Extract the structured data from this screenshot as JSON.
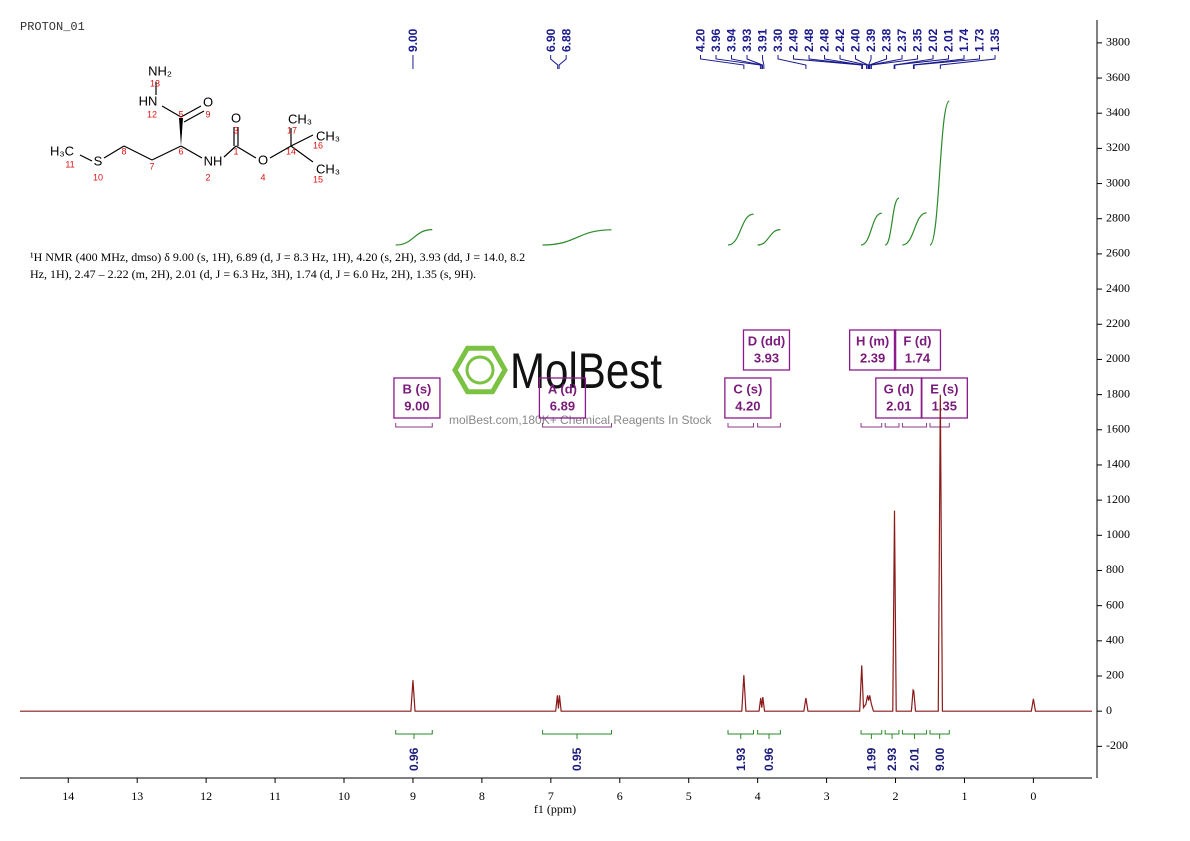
{
  "file_label": "PROTON_01",
  "structure": {
    "atoms": [
      "NH₂",
      "HN",
      "O",
      "O",
      "CH₃",
      "CH₃",
      "H₃C",
      "S",
      "NH",
      "O",
      "CH₃"
    ],
    "numbers": [
      "13",
      "12",
      "5",
      "9",
      "3",
      "17",
      "6",
      "1",
      "14",
      "16",
      "11",
      "8",
      "7",
      "10",
      "2",
      "4",
      "15"
    ]
  },
  "nmr_text": [
    "¹H NMR (400 MHz, dmso) δ 9.00 (s, 1H), 6.89 (d, J = 8.3 Hz, 1H), 4.20 (s, 2H), 3.93 (dd, J = 14.0, 8.2",
    "Hz, 1H), 2.47 – 2.22 (m, 2H), 2.01 (d, J = 6.3 Hz, 3H), 1.74 (d, J = 6.0 Hz, 2H), 1.35 (s, 9H)."
  ],
  "watermark": {
    "brand": "MolBest",
    "url": "molBest.com,180K+ Chemical Reagents In Stock"
  },
  "chart_data": {
    "type": "line",
    "color": "#8b1a1a",
    "xlabel": "f1 (ppm)",
    "xlim": [
      14.7,
      -0.85
    ],
    "xticks": [
      14,
      13,
      12,
      11,
      10,
      9,
      8,
      7,
      6,
      5,
      4,
      3,
      2,
      1,
      0
    ],
    "ylim": [
      -380,
      3930
    ],
    "yticks": [
      -200,
      0,
      200,
      400,
      600,
      800,
      1000,
      1200,
      1400,
      1600,
      1800,
      2000,
      2200,
      2400,
      2600,
      2800,
      3000,
      3200,
      3400,
      3600,
      3800
    ],
    "x": [
      14.7,
      9.03,
      9.0,
      8.97,
      6.93,
      6.905,
      6.89,
      6.875,
      6.85,
      4.23,
      4.2,
      4.17,
      3.98,
      3.955,
      3.94,
      3.925,
      3.9,
      3.33,
      3.3,
      3.27,
      2.52,
      2.49,
      2.465,
      2.43,
      2.405,
      2.39,
      2.375,
      2.35,
      2.32,
      2.04,
      2.015,
      1.99,
      1.77,
      1.745,
      1.735,
      1.71,
      1.38,
      1.35,
      1.32,
      0.03,
      0,
      -0.03,
      -0.85
    ],
    "values": [
      0,
      0,
      176,
      0,
      0,
      90,
      15,
      90,
      0,
      0,
      205,
      0,
      0,
      75,
      20,
      80,
      0,
      0,
      75,
      0,
      0,
      260,
      20,
      40,
      90,
      60,
      90,
      40,
      0,
      0,
      1140,
      0,
      0,
      120,
      115,
      0,
      0,
      1800,
      0,
      0,
      70,
      0,
      0
    ],
    "peak_labels": [
      {
        "value": 9.0,
        "label": "9.00"
      },
      {
        "value": 6.9,
        "label": "6.90"
      },
      {
        "value": 6.88,
        "label": "6.88"
      },
      {
        "value": 4.2,
        "label": "4.20"
      },
      {
        "value": 3.96,
        "label": "3.96"
      },
      {
        "value": 3.94,
        "label": "3.94"
      },
      {
        "value": 3.93,
        "label": "3.93"
      },
      {
        "value": 3.91,
        "label": "3.91"
      },
      {
        "value": 3.3,
        "label": "3.30"
      },
      {
        "value": 2.49,
        "label": "2.49"
      },
      {
        "value": 2.48,
        "label": "2.48"
      },
      {
        "value": 2.48,
        "label": "2.48"
      },
      {
        "value": 2.42,
        "label": "2.42"
      },
      {
        "value": 2.4,
        "label": "2.40"
      },
      {
        "value": 2.39,
        "label": "2.39"
      },
      {
        "value": 2.38,
        "label": "2.38"
      },
      {
        "value": 2.37,
        "label": "2.37"
      },
      {
        "value": 2.35,
        "label": "2.35"
      },
      {
        "value": 2.02,
        "label": "2.02"
      },
      {
        "value": 2.01,
        "label": "2.01"
      },
      {
        "value": 1.74,
        "label": "1.74"
      },
      {
        "value": 1.73,
        "label": "1.73"
      },
      {
        "value": 1.35,
        "label": "1.35"
      }
    ],
    "multiplets": [
      {
        "label": "B (s)",
        "shift": {
          "value": 9.0,
          "label": "9.00"
        },
        "range": [
          9.25,
          8.72
        ]
      },
      {
        "label": "A (d)",
        "shift": {
          "value": 6.89,
          "label": "6.89"
        },
        "range": [
          7.12,
          6.12
        ]
      },
      {
        "label": "C (s)",
        "shift": {
          "value": 4.2,
          "label": "4.20"
        },
        "range": [
          4.43,
          4.06
        ]
      },
      {
        "label": "D (dd)",
        "shift": {
          "value": 3.93,
          "label": "3.93"
        },
        "range": [
          4.0,
          3.67
        ]
      },
      {
        "label": "H (m)",
        "shift": {
          "value": 2.39,
          "label": "2.39"
        },
        "range": [
          2.5,
          2.2
        ]
      },
      {
        "label": "G (d)",
        "shift": {
          "value": 2.01,
          "label": "2.01"
        },
        "range": [
          2.15,
          1.95
        ]
      },
      {
        "label": "F (d)",
        "shift": {
          "value": 1.74,
          "label": "1.74"
        },
        "range": [
          1.9,
          1.55
        ]
      },
      {
        "label": "E (s)",
        "shift": {
          "value": 1.35,
          "label": "1.35"
        },
        "range": [
          1.5,
          1.22
        ]
      }
    ],
    "integrals": {
      "values": [
        0.96,
        0.95,
        1.93,
        0.96,
        1.99,
        2.93,
        2.01,
        9.0
      ],
      "value_labels": [
        "0.96",
        "0.95",
        "1.93",
        "0.96",
        "1.99",
        "2.93",
        "2.01",
        "9.00"
      ]
    }
  }
}
